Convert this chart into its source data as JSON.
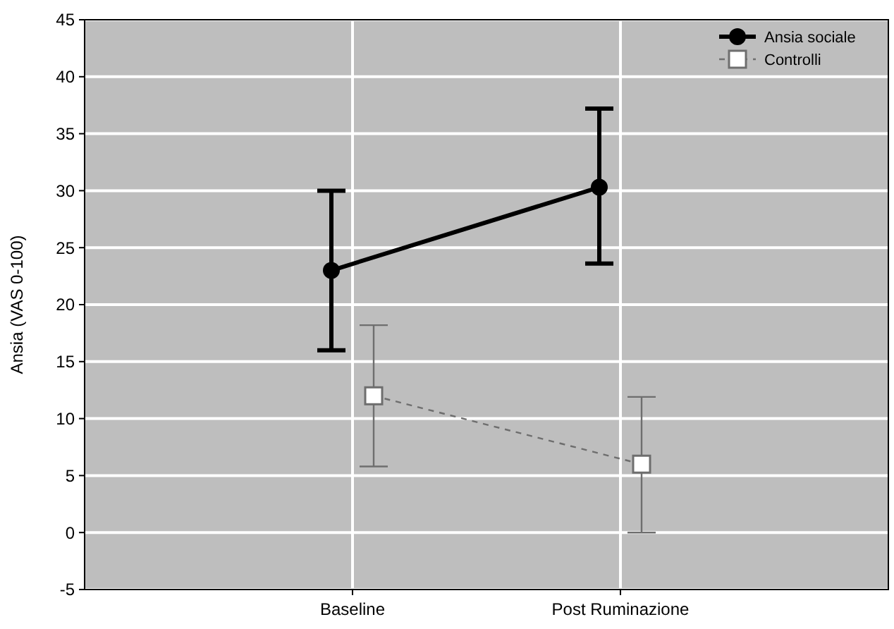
{
  "chart_data": {
    "type": "line",
    "ylabel": "Ansia (VAS 0-100)",
    "categories": [
      "Baseline",
      "Post Ruminazione"
    ],
    "series": [
      {
        "name": "Ansia sociale",
        "color": "#000000",
        "values": [
          23,
          30.3
        ],
        "errors": [
          [
            16,
            30
          ],
          [
            23.6,
            37.2
          ]
        ],
        "marker": "circle",
        "line_style": "solid"
      },
      {
        "name": "Controlli",
        "color": "#6e6e6e",
        "values": [
          12,
          6
        ],
        "errors": [
          [
            5.8,
            18.2
          ],
          [
            0,
            11.9
          ]
        ],
        "marker": "square",
        "line_style": "dashed"
      }
    ],
    "ylim": [
      -5,
      45
    ],
    "yticks": [
      -5,
      0,
      5,
      10,
      15,
      20,
      25,
      30,
      35,
      40,
      45
    ],
    "grid": true,
    "legend": "top right"
  }
}
